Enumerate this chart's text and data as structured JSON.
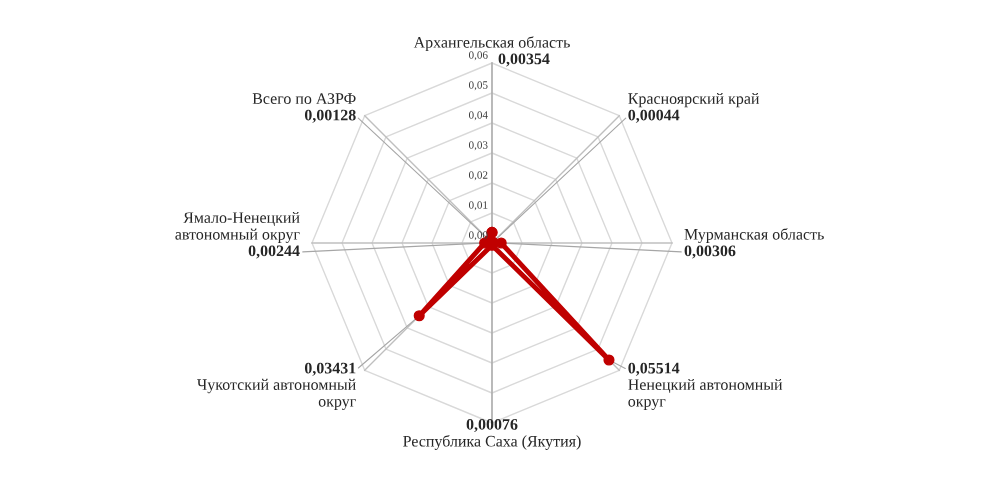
{
  "chart_data": {
    "type": "radar",
    "categories": [
      "Архангельская область",
      "Красноярский край",
      "Мурманская область",
      "Ненецкий автономный\nокруг",
      "Республика Саха (Якутия)",
      "Чукотский автономный\nокруг",
      "Ямало-Ненецкий\nавтономный округ",
      "Всего по АЗРФ"
    ],
    "series": [
      {
        "color": "#c00000",
        "values": [
          0.00354,
          0.00044,
          0.00306,
          0.05514,
          0.00076,
          0.03431,
          0.00244,
          0.00128
        ],
        "value_labels": [
          "0,00354",
          "0,00044",
          "0,00306",
          "0,05514",
          "0,00076",
          "0,03431",
          "0,00244",
          "0,00128"
        ]
      }
    ],
    "ylim": [
      0,
      0.06
    ],
    "yticks": [
      {
        "value": 0,
        "label": "0,00"
      },
      {
        "value": 0.01,
        "label": "0,01"
      },
      {
        "value": 0.02,
        "label": "0,02"
      },
      {
        "value": 0.03,
        "label": "0,03"
      },
      {
        "value": 0.04,
        "label": "0,04"
      },
      {
        "value": 0.05,
        "label": "0,05"
      },
      {
        "value": 0.06,
        "label": "0,06"
      }
    ],
    "grid": true,
    "marker": "circle"
  }
}
